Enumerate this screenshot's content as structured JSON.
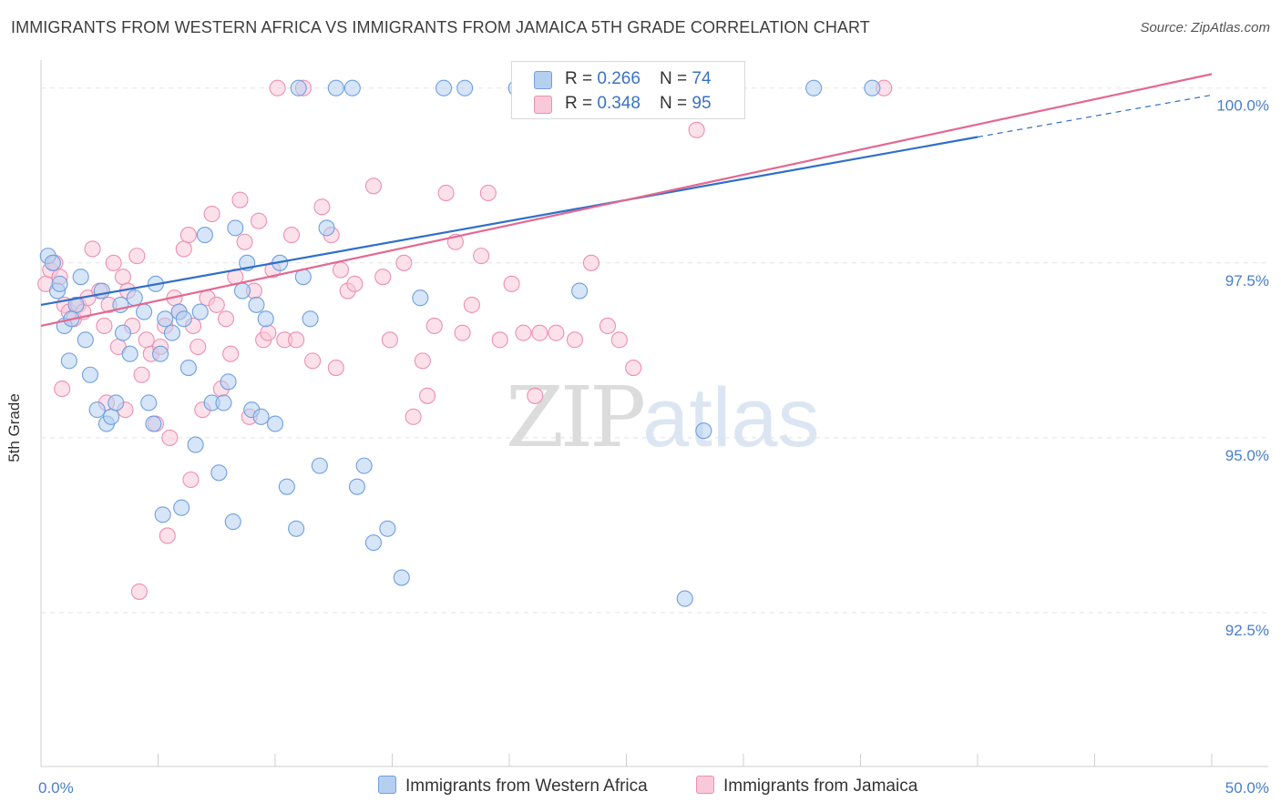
{
  "title": "IMMIGRANTS FROM WESTERN AFRICA VS IMMIGRANTS FROM JAMAICA 5TH GRADE CORRELATION CHART",
  "source": "Source: ZipAtlas.com",
  "watermark": {
    "zip": "ZIP",
    "atlas": "atlas"
  },
  "legend": [
    {
      "r_label": "R = ",
      "r_value": "0.266",
      "n_label": "N = ",
      "n_value": "74",
      "color": "#8db4e8"
    },
    {
      "r_label": "R = ",
      "r_value": "0.348",
      "n_label": "N = ",
      "n_value": "95",
      "color": "#f4a9c2"
    }
  ],
  "chart_data": {
    "type": "scatter",
    "title": "IMMIGRANTS FROM WESTERN AFRICA VS IMMIGRANTS FROM JAMAICA 5TH GRADE CORRELATION CHART",
    "xlabel": "",
    "ylabel": "5th Grade",
    "xlim": [
      0,
      50
    ],
    "ylim": [
      90.3,
      100.4
    ],
    "x_tick_labels": [
      "0.0%",
      "50.0%"
    ],
    "y_tick_labels": [
      "100.0%",
      "97.5%",
      "95.0%",
      "92.5%"
    ],
    "y_ticks": [
      100.0,
      97.5,
      95.0,
      92.5
    ],
    "grid": true,
    "legend_position": "top-center",
    "series": [
      {
        "name": "Immigrants from Western Africa",
        "color": "#6fa0e0",
        "fill": "#b5cff0",
        "trend": {
          "x0": 0,
          "y0": 96.9,
          "x1": 40,
          "y1": 99.3,
          "dashed_to_x": 50,
          "dashed_to_y": 99.9
        },
        "points": [
          [
            0.3,
            97.6
          ],
          [
            0.5,
            97.5
          ],
          [
            0.7,
            97.1
          ],
          [
            0.8,
            97.2
          ],
          [
            1.0,
            96.6
          ],
          [
            1.2,
            96.1
          ],
          [
            1.5,
            96.9
          ],
          [
            1.7,
            97.3
          ],
          [
            1.9,
            96.4
          ],
          [
            2.1,
            95.9
          ],
          [
            2.4,
            95.4
          ],
          [
            2.8,
            95.2
          ],
          [
            3.0,
            95.3
          ],
          [
            3.2,
            95.5
          ],
          [
            3.5,
            96.5
          ],
          [
            3.8,
            96.2
          ],
          [
            4.0,
            97.0
          ],
          [
            4.4,
            96.8
          ],
          [
            4.6,
            95.5
          ],
          [
            4.8,
            95.2
          ],
          [
            5.1,
            96.2
          ],
          [
            5.3,
            96.7
          ],
          [
            5.6,
            96.5
          ],
          [
            5.9,
            96.8
          ],
          [
            6.1,
            96.7
          ],
          [
            6.3,
            96.0
          ],
          [
            6.6,
            94.9
          ],
          [
            6.8,
            96.8
          ],
          [
            7.0,
            97.9
          ],
          [
            7.3,
            95.5
          ],
          [
            7.6,
            94.5
          ],
          [
            7.8,
            95.5
          ],
          [
            8.0,
            95.8
          ],
          [
            8.2,
            93.8
          ],
          [
            8.6,
            97.1
          ],
          [
            8.8,
            97.5
          ],
          [
            9.0,
            95.4
          ],
          [
            9.2,
            96.9
          ],
          [
            9.4,
            95.3
          ],
          [
            9.6,
            96.7
          ],
          [
            10.0,
            95.2
          ],
          [
            10.5,
            94.3
          ],
          [
            10.9,
            93.7
          ],
          [
            11.2,
            97.3
          ],
          [
            11.5,
            96.7
          ],
          [
            11.9,
            94.6
          ],
          [
            12.2,
            98.0
          ],
          [
            12.6,
            100.0
          ],
          [
            13.3,
            100.0
          ],
          [
            13.5,
            94.3
          ],
          [
            13.8,
            94.6
          ],
          [
            14.2,
            93.5
          ],
          [
            14.8,
            93.7
          ],
          [
            15.4,
            93.0
          ],
          [
            16.2,
            97.0
          ],
          [
            18.1,
            100.0
          ],
          [
            20.3,
            100.0
          ],
          [
            21.7,
            100.0
          ],
          [
            23.0,
            97.1
          ],
          [
            26.5,
            100.0
          ],
          [
            27.5,
            92.7
          ],
          [
            28.3,
            95.1
          ],
          [
            33.0,
            100.0
          ],
          [
            35.5,
            100.0
          ],
          [
            2.6,
            97.1
          ],
          [
            5.2,
            93.9
          ],
          [
            6.0,
            94.0
          ],
          [
            3.4,
            96.9
          ],
          [
            8.3,
            98.0
          ],
          [
            11.0,
            100.0
          ],
          [
            17.2,
            100.0
          ],
          [
            4.9,
            97.2
          ],
          [
            1.3,
            96.7
          ],
          [
            10.2,
            97.5
          ]
        ]
      },
      {
        "name": "Immigrants from Jamaica",
        "color": "#ee8fb0",
        "fill": "#f9c9d9",
        "trend": {
          "x0": 0,
          "y0": 96.6,
          "x1": 50,
          "y1": 100.2
        },
        "points": [
          [
            0.2,
            97.2
          ],
          [
            0.4,
            97.4
          ],
          [
            0.6,
            97.5
          ],
          [
            0.8,
            97.3
          ],
          [
            1.0,
            96.9
          ],
          [
            1.2,
            96.8
          ],
          [
            1.4,
            96.7
          ],
          [
            1.6,
            96.9
          ],
          [
            1.8,
            96.8
          ],
          [
            2.0,
            97.0
          ],
          [
            2.2,
            97.7
          ],
          [
            2.5,
            97.1
          ],
          [
            2.7,
            96.6
          ],
          [
            2.9,
            96.9
          ],
          [
            3.1,
            97.5
          ],
          [
            3.3,
            96.3
          ],
          [
            3.5,
            97.3
          ],
          [
            3.7,
            97.1
          ],
          [
            3.9,
            96.6
          ],
          [
            4.1,
            97.6
          ],
          [
            4.3,
            95.9
          ],
          [
            4.5,
            96.4
          ],
          [
            4.7,
            96.2
          ],
          [
            4.9,
            95.2
          ],
          [
            5.1,
            96.3
          ],
          [
            5.3,
            96.6
          ],
          [
            5.5,
            95.0
          ],
          [
            5.7,
            97.0
          ],
          [
            5.9,
            96.8
          ],
          [
            6.1,
            97.7
          ],
          [
            6.3,
            97.9
          ],
          [
            6.5,
            96.6
          ],
          [
            6.7,
            96.3
          ],
          [
            6.9,
            95.4
          ],
          [
            7.1,
            97.0
          ],
          [
            7.3,
            98.2
          ],
          [
            7.5,
            96.9
          ],
          [
            7.7,
            95.7
          ],
          [
            7.9,
            96.7
          ],
          [
            8.1,
            96.2
          ],
          [
            8.3,
            97.3
          ],
          [
            8.5,
            98.4
          ],
          [
            8.7,
            97.8
          ],
          [
            8.9,
            95.3
          ],
          [
            9.1,
            97.1
          ],
          [
            9.3,
            98.1
          ],
          [
            9.5,
            96.4
          ],
          [
            9.7,
            96.5
          ],
          [
            9.9,
            97.4
          ],
          [
            10.1,
            100.0
          ],
          [
            10.4,
            96.4
          ],
          [
            10.7,
            97.9
          ],
          [
            10.9,
            96.4
          ],
          [
            11.2,
            100.0
          ],
          [
            11.6,
            96.1
          ],
          [
            12.0,
            98.3
          ],
          [
            12.4,
            97.9
          ],
          [
            12.8,
            97.4
          ],
          [
            13.1,
            97.1
          ],
          [
            13.4,
            97.2
          ],
          [
            14.2,
            98.6
          ],
          [
            14.6,
            97.3
          ],
          [
            14.9,
            96.4
          ],
          [
            15.5,
            97.5
          ],
          [
            15.9,
            95.3
          ],
          [
            16.3,
            96.1
          ],
          [
            16.8,
            96.6
          ],
          [
            17.3,
            98.5
          ],
          [
            17.7,
            97.8
          ],
          [
            18.0,
            96.5
          ],
          [
            18.4,
            96.9
          ],
          [
            18.8,
            97.6
          ],
          [
            19.6,
            96.4
          ],
          [
            20.1,
            97.2
          ],
          [
            20.6,
            96.5
          ],
          [
            21.3,
            96.5
          ],
          [
            22.0,
            96.5
          ],
          [
            22.8,
            96.4
          ],
          [
            23.5,
            97.5
          ],
          [
            24.2,
            96.6
          ],
          [
            24.7,
            96.4
          ],
          [
            25.3,
            96.0
          ],
          [
            27.3,
            100.0
          ],
          [
            28.0,
            99.4
          ],
          [
            36.0,
            100.0
          ],
          [
            0.9,
            95.7
          ],
          [
            2.8,
            95.5
          ],
          [
            3.6,
            95.4
          ],
          [
            6.4,
            94.4
          ],
          [
            5.4,
            93.6
          ],
          [
            4.2,
            92.8
          ],
          [
            12.6,
            96.0
          ],
          [
            16.5,
            95.6
          ],
          [
            19.1,
            98.5
          ],
          [
            21.1,
            95.6
          ]
        ]
      }
    ]
  },
  "bottom_legend": [
    {
      "label": "Immigrants from Western Africa",
      "color": "#b5cff0"
    },
    {
      "label": "Immigrants from Jamaica",
      "color": "#f9c9d9"
    }
  ]
}
